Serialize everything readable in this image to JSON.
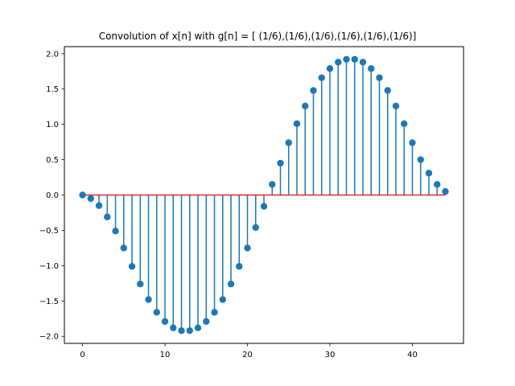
{
  "chart_data": {
    "type": "stem",
    "title": "Convolution of x[n] with g[n] = [ (1/6),(1/6),(1/6),(1/6),(1/6),(1/6)]",
    "xlabel": "",
    "ylabel": "",
    "xlim": [
      -2.2,
      46.2
    ],
    "ylim": [
      -2.1,
      2.1
    ],
    "grid": false,
    "x_ticks": [
      0,
      10,
      20,
      30,
      40
    ],
    "y_ticks": [
      -2.0,
      -1.5,
      -1.0,
      -0.5,
      0.0,
      0.5,
      1.0,
      1.5,
      2.0
    ],
    "x_tick_labels": [
      "0",
      "10",
      "20",
      "30",
      "40"
    ],
    "y_tick_labels": [
      "−2.0",
      "−1.5",
      "−1.0",
      "−0.5",
      "0.0",
      "0.5",
      "1.0",
      "1.5",
      "2.0"
    ],
    "x": [
      0,
      1,
      2,
      3,
      4,
      5,
      6,
      7,
      8,
      9,
      10,
      11,
      12,
      13,
      14,
      15,
      16,
      17,
      18,
      19,
      20,
      21,
      22,
      23,
      24,
      25,
      26,
      27,
      28,
      29,
      30,
      31,
      32,
      33,
      34,
      35,
      36,
      37,
      38,
      39,
      40,
      41,
      42,
      43,
      44
    ],
    "values": [
      0.0,
      -0.05,
      -0.15,
      -0.31,
      -0.51,
      -0.75,
      -1.01,
      -1.26,
      -1.48,
      -1.66,
      -1.79,
      -1.88,
      -1.92,
      -1.92,
      -1.88,
      -1.79,
      -1.66,
      -1.48,
      -1.26,
      -1.01,
      -0.75,
      -0.46,
      -0.16,
      0.15,
      0.45,
      0.74,
      1.01,
      1.26,
      1.48,
      1.66,
      1.79,
      1.88,
      1.92,
      1.92,
      1.88,
      1.79,
      1.66,
      1.48,
      1.26,
      1.01,
      0.74,
      0.5,
      0.31,
      0.15,
      0.05
    ],
    "colors": {
      "stem": "#1f77b4",
      "baseline": "#d62728",
      "axis": "#000000"
    }
  }
}
